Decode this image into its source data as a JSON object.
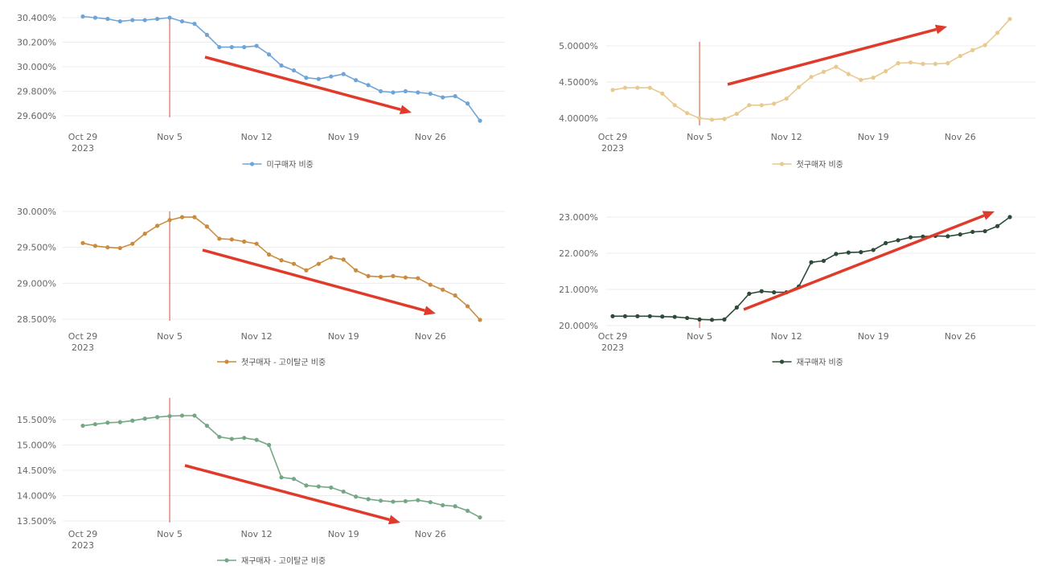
{
  "colors": {
    "annotation": "#e03a2b",
    "marker_line": "#e06a5a",
    "grid": "#ececec",
    "tick_text": "#666666"
  },
  "chart_data": [
    {
      "id": "c1",
      "type": "line",
      "x_tick_labels": [
        "Oct 29",
        "Nov 5",
        "Nov 12",
        "Nov 19",
        "Nov 26"
      ],
      "x_tick_sublabel": "2023",
      "y_ticks": [
        "29.600%",
        "29.800%",
        "30.000%",
        "30.200%",
        "30.400%"
      ],
      "y_tick_values": [
        29.6,
        29.8,
        30.0,
        30.2,
        30.4
      ],
      "ylim": [
        29.6,
        30.4
      ],
      "series": [
        {
          "name": "미구매자 비중",
          "color": "#6ea5d8",
          "values": [
            30.41,
            30.4,
            30.39,
            30.37,
            30.38,
            30.38,
            30.39,
            30.4,
            30.37,
            30.35,
            30.26,
            30.16,
            30.16,
            30.16,
            30.17,
            30.1,
            30.01,
            29.97,
            29.91,
            29.9,
            29.92,
            29.94,
            29.89,
            29.85,
            29.8,
            29.79,
            29.8,
            29.79,
            29.78,
            29.75,
            29.76,
            29.7,
            29.56
          ]
        }
      ],
      "marker_index": 7,
      "trend": "down"
    },
    {
      "id": "c2",
      "type": "line",
      "x_tick_labels": [
        "Oct 29",
        "Nov 5",
        "Nov 12",
        "Nov 19",
        "Nov 26"
      ],
      "x_tick_sublabel": "2023",
      "y_ticks": [
        "4.0000%",
        "4.5000%",
        "5.0000%"
      ],
      "y_tick_values": [
        4.0,
        4.5,
        5.0
      ],
      "ylim": [
        4.0,
        5.0
      ],
      "series": [
        {
          "name": "첫구매자 비중",
          "color": "#e8c98f",
          "values": [
            4.39,
            4.42,
            4.42,
            4.42,
            4.34,
            4.18,
            4.07,
            4.0,
            3.98,
            3.99,
            4.06,
            4.18,
            4.18,
            4.2,
            4.27,
            4.43,
            4.57,
            4.64,
            4.71,
            4.61,
            4.53,
            4.56,
            4.65,
            4.76,
            4.77,
            4.75,
            4.75,
            4.76,
            4.86,
            4.94,
            5.01,
            5.18,
            5.37
          ]
        }
      ],
      "marker_index": 7,
      "trend": "up"
    },
    {
      "id": "c3",
      "type": "line",
      "x_tick_labels": [
        "Oct 29",
        "Nov 5",
        "Nov 12",
        "Nov 19",
        "Nov 26"
      ],
      "x_tick_sublabel": "2023",
      "y_ticks": [
        "28.500%",
        "29.000%",
        "29.500%",
        "30.000%"
      ],
      "y_tick_values": [
        28.5,
        29.0,
        29.5,
        30.0
      ],
      "ylim": [
        28.5,
        30.0
      ],
      "series": [
        {
          "name": "첫구매자 - 고이탈군 비중",
          "color": "#c98c3f",
          "values": [
            29.56,
            29.52,
            29.5,
            29.49,
            29.55,
            29.69,
            29.8,
            29.88,
            29.92,
            29.92,
            29.79,
            29.62,
            29.61,
            29.58,
            29.55,
            29.4,
            29.32,
            29.27,
            29.18,
            29.27,
            29.36,
            29.33,
            29.18,
            29.1,
            29.09,
            29.1,
            29.08,
            29.07,
            28.98,
            28.91,
            28.83,
            28.68,
            28.49
          ]
        }
      ],
      "marker_index": 7,
      "trend": "down"
    },
    {
      "id": "c4",
      "type": "line",
      "x_tick_labels": [
        "Oct 29",
        "Nov 5",
        "Nov 12",
        "Nov 19",
        "Nov 26"
      ],
      "x_tick_sublabel": "2023",
      "y_ticks": [
        "20.000%",
        "21.000%",
        "22.000%",
        "23.000%"
      ],
      "y_tick_values": [
        20.0,
        21.0,
        22.0,
        23.0
      ],
      "ylim": [
        20.0,
        23.0
      ],
      "series": [
        {
          "name": "재구매자 비중",
          "color": "#2e4a38",
          "values": [
            20.26,
            20.26,
            20.26,
            20.26,
            20.25,
            20.24,
            20.21,
            20.17,
            20.16,
            20.17,
            20.5,
            20.88,
            20.95,
            20.92,
            20.92,
            21.08,
            21.75,
            21.79,
            21.98,
            22.02,
            22.03,
            22.09,
            22.28,
            22.36,
            22.44,
            22.46,
            22.48,
            22.47,
            22.52,
            22.59,
            22.61,
            22.75,
            23.0
          ]
        }
      ],
      "marker_index": 7,
      "trend": "up"
    },
    {
      "id": "c5",
      "type": "line",
      "x_tick_labels": [
        "Oct 29",
        "Nov 5",
        "Nov 12",
        "Nov 19",
        "Nov 26"
      ],
      "x_tick_sublabel": "2023",
      "y_ticks": [
        "13.500%",
        "14.000%",
        "14.500%",
        "15.000%",
        "15.500%"
      ],
      "y_tick_values": [
        13.5,
        14.0,
        14.5,
        15.0,
        15.5
      ],
      "ylim": [
        13.5,
        15.5
      ],
      "series": [
        {
          "name": "재구매자 - 고이탈군 비중",
          "color": "#74a883",
          "values": [
            15.38,
            15.41,
            15.44,
            15.45,
            15.48,
            15.52,
            15.55,
            15.57,
            15.58,
            15.58,
            15.38,
            15.16,
            15.12,
            15.14,
            15.1,
            15.0,
            14.36,
            14.33,
            14.2,
            14.18,
            14.16,
            14.08,
            13.98,
            13.93,
            13.9,
            13.88,
            13.89,
            13.91,
            13.87,
            13.81,
            13.79,
            13.7,
            13.57
          ]
        }
      ],
      "marker_index": 7,
      "trend": "down"
    }
  ]
}
